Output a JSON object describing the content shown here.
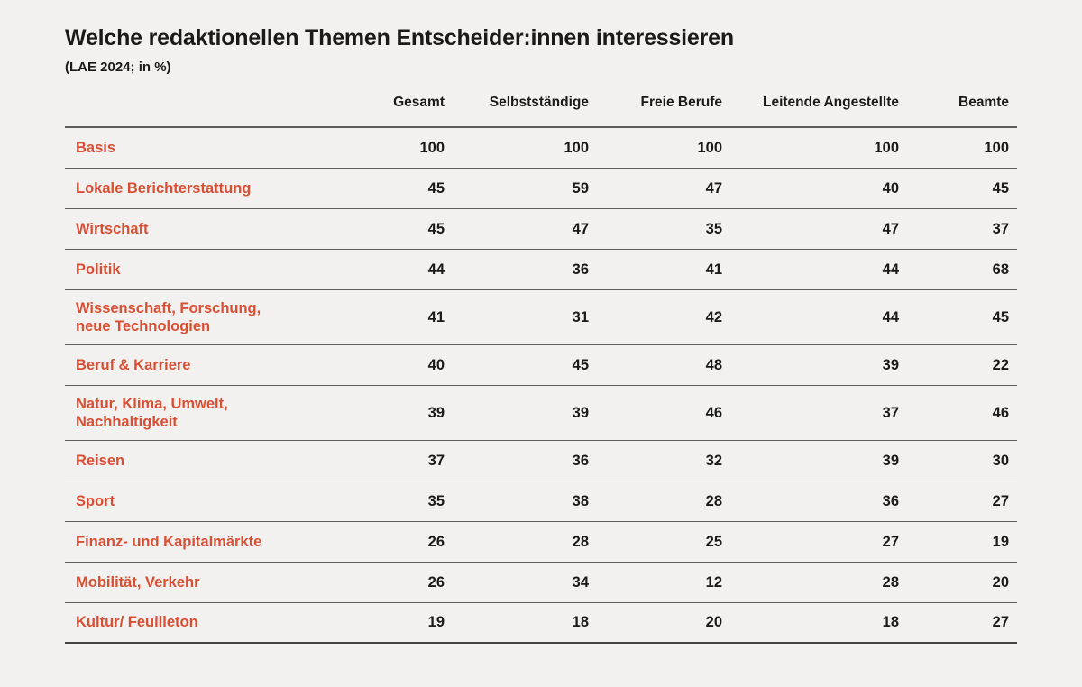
{
  "colors": {
    "accent": "#d94f34",
    "background": "#f2f1ef",
    "text": "#1a1a18",
    "separator_line": "#5e5c57"
  },
  "chart_data": {
    "type": "table",
    "title": "Welche redaktionellen Themen Entscheider:innen interessieren",
    "subtitle": "(LAE 2024; in %)",
    "unit": "%",
    "columns": [
      "Gesamt",
      "Selbstständige",
      "Freie Berufe",
      "Leitende Angestellte",
      "Beamte"
    ],
    "rows": [
      {
        "label": "Basis",
        "values": [
          100,
          100,
          100,
          100,
          100
        ]
      },
      {
        "label": "Lokale Berichterstattung",
        "values": [
          45,
          59,
          47,
          40,
          45
        ]
      },
      {
        "label": "Wirtschaft",
        "values": [
          45,
          47,
          35,
          47,
          37
        ]
      },
      {
        "label": "Politik",
        "values": [
          44,
          36,
          41,
          44,
          68
        ]
      },
      {
        "label": "Wissenschaft, Forschung,\nneue Technologien",
        "values": [
          41,
          31,
          42,
          44,
          45
        ]
      },
      {
        "label": "Beruf & Karriere",
        "values": [
          40,
          45,
          48,
          39,
          22
        ]
      },
      {
        "label": "Natur, Klima, Umwelt,\nNachhaltigkeit",
        "values": [
          39,
          39,
          46,
          37,
          46
        ]
      },
      {
        "label": "Reisen",
        "values": [
          37,
          36,
          32,
          39,
          30
        ]
      },
      {
        "label": "Sport",
        "values": [
          35,
          38,
          28,
          36,
          27
        ]
      },
      {
        "label": "Finanz- und Kapitalmärkte",
        "values": [
          26,
          28,
          25,
          27,
          19
        ]
      },
      {
        "label": "Mobilität, Verkehr",
        "values": [
          26,
          34,
          12,
          28,
          20
        ]
      },
      {
        "label": "Kultur/ Feuilleton",
        "values": [
          19,
          18,
          20,
          18,
          27
        ]
      }
    ]
  }
}
